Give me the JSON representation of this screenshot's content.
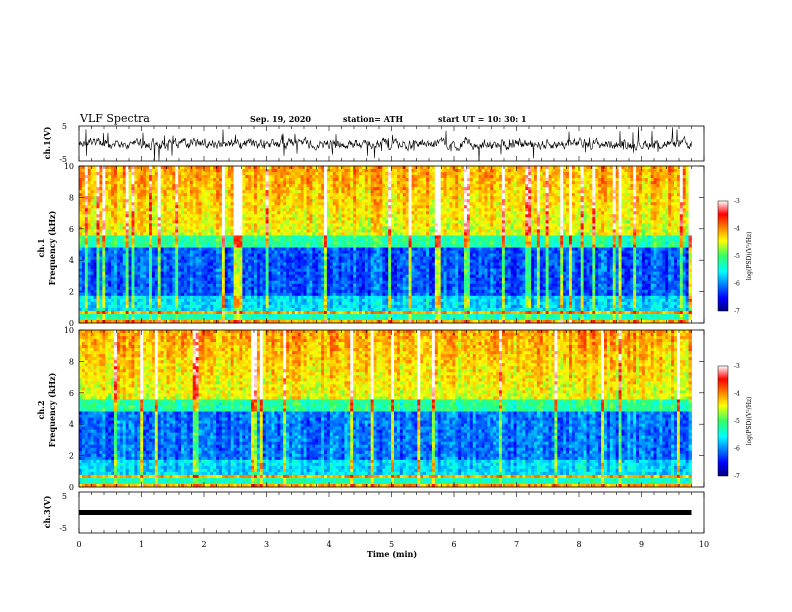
{
  "header": {
    "title": "VLF Spectra",
    "date": "Sep. 19, 2020",
    "station": "station= ATH",
    "start": "start  UT =   10: 30: 1"
  },
  "chart_data": [
    {
      "type": "line",
      "name": "ch1-waveform",
      "ylabel": "ch.1(V)",
      "ylim": [
        -5,
        5
      ],
      "yticks": [
        "5",
        "-5"
      ],
      "xlim": [
        0,
        10
      ],
      "data_extent_min": 9.8
    },
    {
      "type": "heatmap",
      "name": "ch1-spectrogram",
      "ylabel_line1": "ch.1",
      "ylabel_line2": "Frequency (kHz)",
      "ylim": [
        0,
        10
      ],
      "yticks": [
        "0",
        "2",
        "4",
        "6",
        "8",
        "10"
      ],
      "xlim": [
        0,
        10
      ],
      "colorbar": {
        "label": "log(PSD)(V²/Hz)",
        "range": [
          -7,
          -3
        ],
        "ticks": [
          "-3",
          "-4",
          "-5",
          "-6",
          "-7"
        ]
      }
    },
    {
      "type": "heatmap",
      "name": "ch2-spectrogram",
      "ylabel_line1": "ch.2",
      "ylabel_line2": "Frequency (kHz)",
      "ylim": [
        0,
        10
      ],
      "yticks": [
        "0",
        "2",
        "4",
        "6",
        "8",
        "10"
      ],
      "xlim": [
        0,
        10
      ],
      "colorbar": {
        "label": "log(PSD)(V²/Hz)",
        "range": [
          -7,
          -3
        ],
        "ticks": [
          "-3",
          "-4",
          "-5",
          "-6",
          "-7"
        ]
      }
    },
    {
      "type": "line",
      "name": "ch3-waveform",
      "ylabel": "ch.3(V)",
      "ylim": [
        -5,
        5
      ],
      "yticks": [
        "5",
        "-5"
      ],
      "xlim": [
        0,
        10
      ],
      "level": 0
    }
  ],
  "xaxis": {
    "label": "Time  (min)",
    "ticks": [
      "0",
      "1",
      "2",
      "3",
      "4",
      "5",
      "6",
      "7",
      "8",
      "9",
      "10"
    ]
  }
}
